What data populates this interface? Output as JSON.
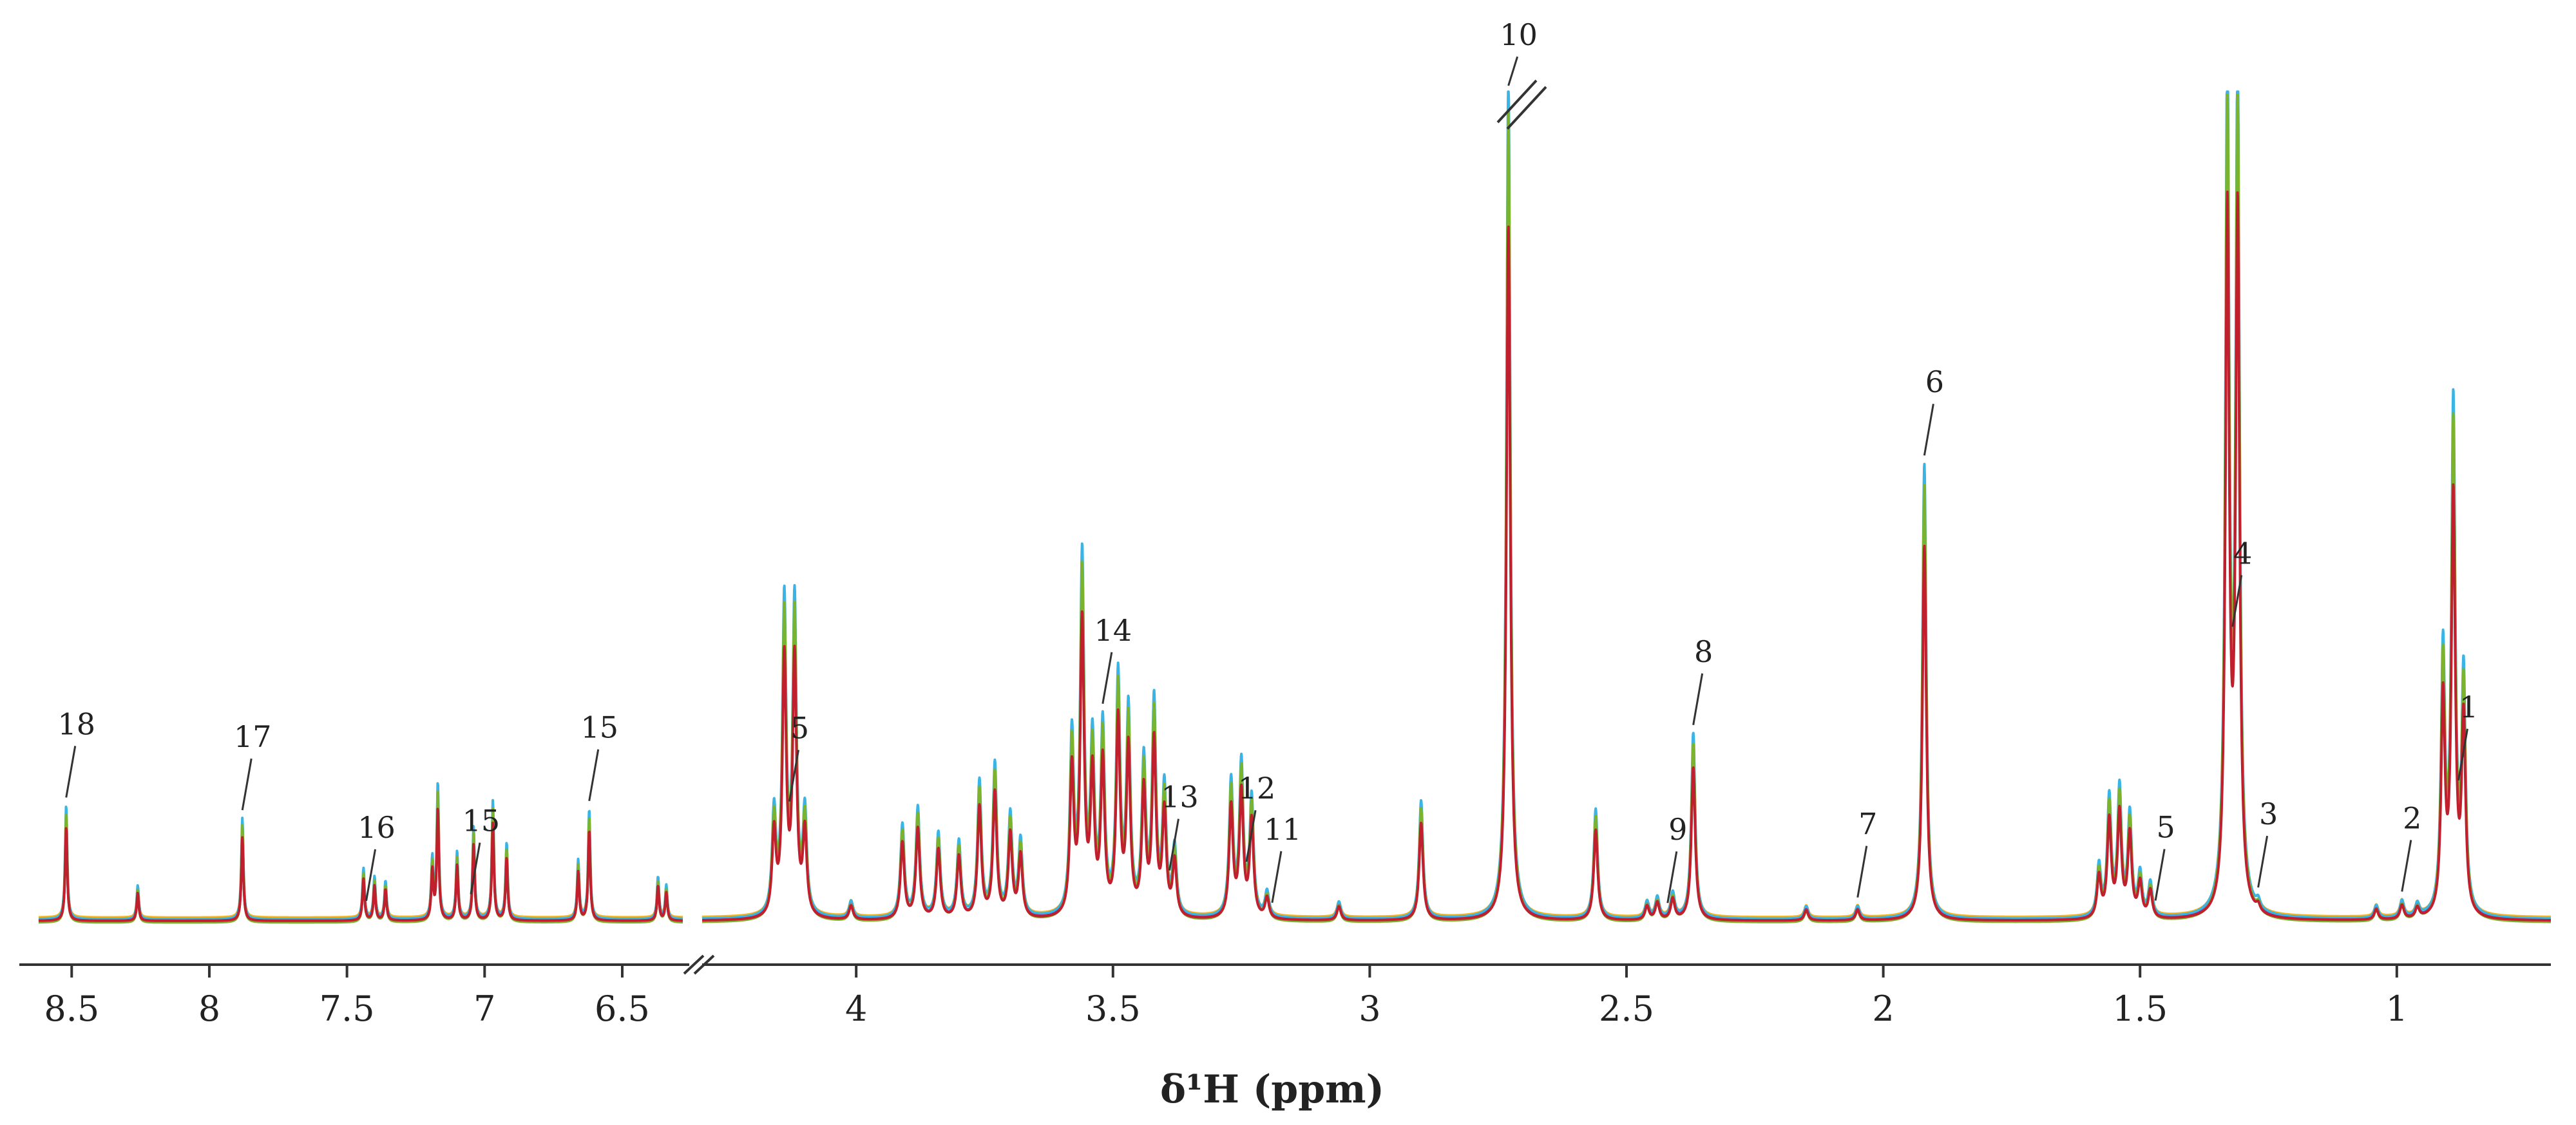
{
  "chart_data": {
    "type": "line",
    "title": "",
    "xlabel": "δ¹H (ppm)",
    "ylabel": "",
    "grid": false,
    "legend": "none",
    "axis_breaks": [
      {
        "left_segment_xlim": [
          8.62,
          6.28
        ],
        "right_segment_xlim": [
          4.3,
          0.7
        ]
      },
      {
        "note": "peak at 2.73 truncated (double slash mark)"
      }
    ],
    "x_ticks_left": [
      "8.5",
      "8",
      "7.5",
      "7",
      "6.5"
    ],
    "x_ticks_right": [
      "4",
      "3.5",
      "3",
      "2.5",
      "2",
      "1.5",
      "1"
    ],
    "x_tick_values_left": [
      8.5,
      8.0,
      7.5,
      7.0,
      6.5
    ],
    "x_tick_values_right": [
      4.0,
      3.5,
      3.0,
      2.5,
      2.0,
      1.5,
      1.0
    ],
    "series_colors": [
      "#f5b21a",
      "#3ab4e4",
      "#8e2a8c",
      "#7bb32e",
      "#c0202d"
    ],
    "series": [
      {
        "color": "#f5b21a",
        "scale": 0.94,
        "offset": 0.004
      },
      {
        "color": "#3ab4e4",
        "scale": 1.02,
        "offset": 0.002
      },
      {
        "color": "#8e2a8c",
        "scale": 0.9,
        "offset": 0.0
      },
      {
        "color": "#7bb32e",
        "scale": 0.98,
        "offset": -0.002
      },
      {
        "color": "#c0202d",
        "scale": 0.84,
        "offset": 0.0
      }
    ],
    "peaks": [
      {
        "ppm": 8.52,
        "height": 0.135
      },
      {
        "ppm": 8.26,
        "height": 0.04
      },
      {
        "ppm": 7.88,
        "height": 0.12
      },
      {
        "ppm": 7.44,
        "height": 0.06
      },
      {
        "ppm": 7.4,
        "height": 0.05
      },
      {
        "ppm": 7.36,
        "height": 0.045
      },
      {
        "ppm": 7.19,
        "height": 0.07
      },
      {
        "ppm": 7.17,
        "height": 0.16
      },
      {
        "ppm": 7.1,
        "height": 0.08
      },
      {
        "ppm": 7.04,
        "height": 0.11
      },
      {
        "ppm": 6.97,
        "height": 0.14
      },
      {
        "ppm": 6.92,
        "height": 0.09
      },
      {
        "ppm": 6.66,
        "height": 0.07
      },
      {
        "ppm": 6.62,
        "height": 0.13
      },
      {
        "ppm": 6.37,
        "height": 0.05
      },
      {
        "ppm": 6.34,
        "height": 0.04
      },
      {
        "ppm": 4.16,
        "height": 0.12
      },
      {
        "ppm": 4.14,
        "height": 0.37
      },
      {
        "ppm": 4.12,
        "height": 0.37
      },
      {
        "ppm": 4.1,
        "height": 0.12
      },
      {
        "ppm": 4.01,
        "height": 0.02
      },
      {
        "ppm": 3.91,
        "height": 0.11
      },
      {
        "ppm": 3.88,
        "height": 0.13
      },
      {
        "ppm": 3.84,
        "height": 0.1
      },
      {
        "ppm": 3.8,
        "height": 0.09
      },
      {
        "ppm": 3.76,
        "height": 0.16
      },
      {
        "ppm": 3.73,
        "height": 0.18
      },
      {
        "ppm": 3.7,
        "height": 0.12
      },
      {
        "ppm": 3.68,
        "height": 0.09
      },
      {
        "ppm": 3.58,
        "height": 0.21
      },
      {
        "ppm": 3.56,
        "height": 0.42
      },
      {
        "ppm": 3.54,
        "height": 0.2
      },
      {
        "ppm": 3.52,
        "height": 0.22
      },
      {
        "ppm": 3.49,
        "height": 0.28
      },
      {
        "ppm": 3.47,
        "height": 0.24
      },
      {
        "ppm": 3.44,
        "height": 0.18
      },
      {
        "ppm": 3.42,
        "height": 0.25
      },
      {
        "ppm": 3.4,
        "height": 0.15
      },
      {
        "ppm": 3.38,
        "height": 0.08
      },
      {
        "ppm": 3.27,
        "height": 0.16
      },
      {
        "ppm": 3.25,
        "height": 0.18
      },
      {
        "ppm": 3.23,
        "height": 0.14
      },
      {
        "ppm": 3.2,
        "height": 0.03
      },
      {
        "ppm": 3.06,
        "height": 0.02
      },
      {
        "ppm": 2.9,
        "height": 0.14
      },
      {
        "ppm": 2.73,
        "height": 1.0
      },
      {
        "ppm": 2.56,
        "height": 0.13
      },
      {
        "ppm": 2.46,
        "height": 0.02
      },
      {
        "ppm": 2.44,
        "height": 0.025
      },
      {
        "ppm": 2.41,
        "height": 0.03
      },
      {
        "ppm": 2.37,
        "height": 0.22
      },
      {
        "ppm": 2.15,
        "height": 0.015
      },
      {
        "ppm": 2.05,
        "height": 0.015
      },
      {
        "ppm": 1.92,
        "height": 0.54
      },
      {
        "ppm": 1.58,
        "height": 0.06
      },
      {
        "ppm": 1.56,
        "height": 0.14
      },
      {
        "ppm": 1.54,
        "height": 0.15
      },
      {
        "ppm": 1.52,
        "height": 0.12
      },
      {
        "ppm": 1.5,
        "height": 0.05
      },
      {
        "ppm": 1.48,
        "height": 0.04
      },
      {
        "ppm": 1.33,
        "height": 1.0
      },
      {
        "ppm": 1.31,
        "height": 1.0
      },
      {
        "ppm": 1.27,
        "height": 0.01
      },
      {
        "ppm": 1.04,
        "height": 0.015
      },
      {
        "ppm": 0.99,
        "height": 0.02
      },
      {
        "ppm": 0.96,
        "height": 0.015
      },
      {
        "ppm": 0.91,
        "height": 0.31
      },
      {
        "ppm": 0.89,
        "height": 0.6
      },
      {
        "ppm": 0.87,
        "height": 0.28
      }
    ],
    "annotations": [
      {
        "label": "18",
        "ppm": 8.52
      },
      {
        "label": "17",
        "ppm": 7.88
      },
      {
        "label": "16",
        "ppm": 7.43
      },
      {
        "label": "15",
        "ppm": 7.05
      },
      {
        "label": "15",
        "ppm": 6.62
      },
      {
        "label": "5",
        "ppm": 4.13
      },
      {
        "label": "14",
        "ppm": 3.52
      },
      {
        "label": "13",
        "ppm": 3.39
      },
      {
        "label": "12",
        "ppm": 3.24
      },
      {
        "label": "11",
        "ppm": 3.19
      },
      {
        "label": "10",
        "ppm": 2.73
      },
      {
        "label": "9",
        "ppm": 2.42
      },
      {
        "label": "8",
        "ppm": 2.37
      },
      {
        "label": "7",
        "ppm": 2.05
      },
      {
        "label": "6",
        "ppm": 1.92
      },
      {
        "label": "5",
        "ppm": 1.47
      },
      {
        "label": "3",
        "ppm": 1.27
      },
      {
        "label": "4",
        "ppm": 1.32
      },
      {
        "label": "2",
        "ppm": 0.99
      },
      {
        "label": "1",
        "ppm": 0.88
      }
    ]
  }
}
